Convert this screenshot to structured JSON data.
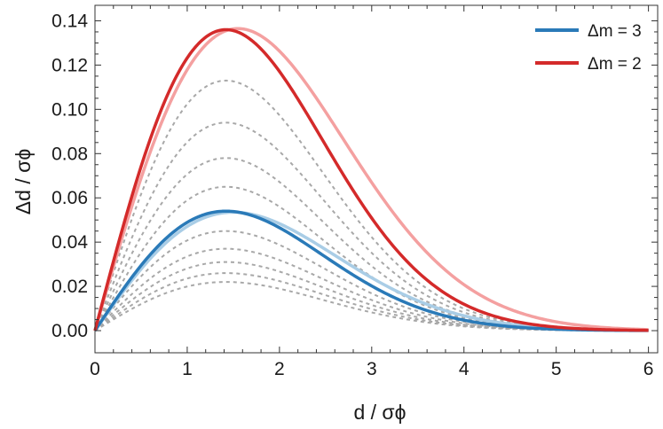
{
  "chart_data": {
    "type": "line",
    "xlabel": "d / σϕ",
    "ylabel": "Δd / σϕ",
    "xlim": [
      0,
      6.1
    ],
    "ylim": [
      -0.01,
      0.147
    ],
    "x_ticks": [
      "0",
      "1",
      "2",
      "3",
      "4",
      "5",
      "6"
    ],
    "y_ticks": [
      "0.00",
      "0.02",
      "0.04",
      "0.06",
      "0.08",
      "0.10",
      "0.12",
      "0.14"
    ],
    "grid": false,
    "legend_position": "top-right",
    "legend": [
      {
        "label": "Δm = 3",
        "color": "#2a7ab8"
      },
      {
        "label": "Δm = 2",
        "color": "#d42a2a"
      }
    ],
    "colors": {
      "blue": "#2a7ab8",
      "blue_light": "#a9cde6",
      "red": "#d42a2a",
      "red_light": "#f4a0a0",
      "gray_dashed": "#a8a8a8"
    },
    "series": [
      {
        "name": "Δm = 3",
        "style": "solid",
        "color": "#2a7ab8",
        "peak_x": 1.42,
        "peak_y": 0.054
      },
      {
        "style": "solid",
        "color": "#a9cde6",
        "peak_x": 1.5,
        "peak_y": 0.0535
      },
      {
        "name": "Δm = 2",
        "style": "solid",
        "color": "#d42a2a",
        "peak_x": 1.42,
        "peak_y": 0.136
      },
      {
        "style": "solid",
        "color": "#f4a0a0",
        "peak_x": 1.55,
        "peak_y": 0.1365
      },
      {
        "style": "dashed",
        "color": "#a8a8a8",
        "peak_x": 1.42,
        "peak_y": 0.113
      },
      {
        "style": "dashed",
        "color": "#a8a8a8",
        "peak_x": 1.42,
        "peak_y": 0.094
      },
      {
        "style": "dashed",
        "color": "#a8a8a8",
        "peak_x": 1.42,
        "peak_y": 0.078
      },
      {
        "style": "dashed",
        "color": "#a8a8a8",
        "peak_x": 1.42,
        "peak_y": 0.065
      },
      {
        "style": "dashed",
        "color": "#a8a8a8",
        "peak_x": 1.42,
        "peak_y": 0.045
      },
      {
        "style": "dashed",
        "color": "#a8a8a8",
        "peak_x": 1.42,
        "peak_y": 0.037
      },
      {
        "style": "dashed",
        "color": "#a8a8a8",
        "peak_x": 1.42,
        "peak_y": 0.031
      },
      {
        "style": "dashed",
        "color": "#a8a8a8",
        "peak_x": 1.42,
        "peak_y": 0.026
      },
      {
        "style": "dashed",
        "color": "#a8a8a8",
        "peak_x": 1.42,
        "peak_y": 0.022
      }
    ]
  }
}
